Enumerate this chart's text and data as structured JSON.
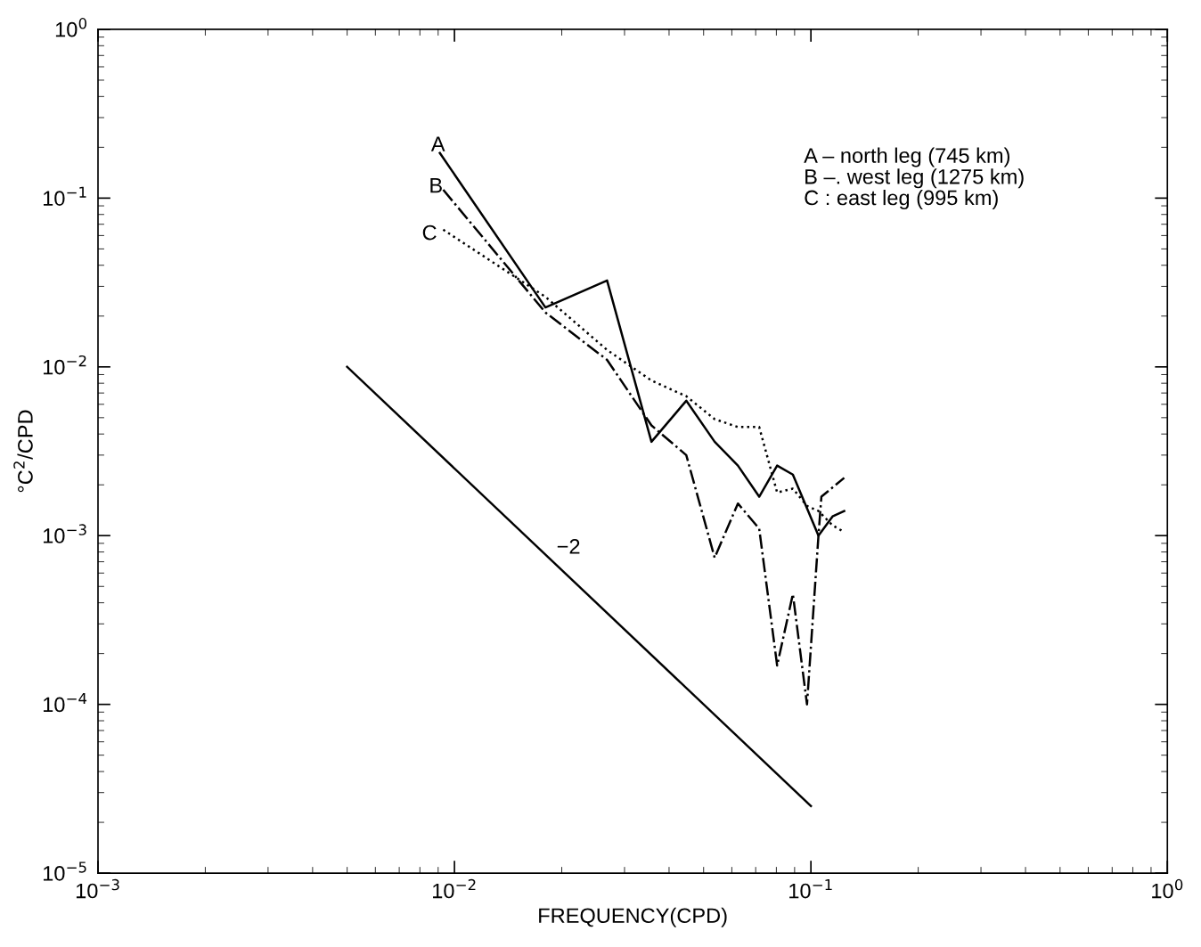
{
  "chart_data": {
    "type": "line",
    "xlabel": "FREQUENCY(CPD)",
    "ylabel": "°C$^{2}$/CPD",
    "log": "xy",
    "grid": false,
    "legend": false,
    "xlim": [
      0.001,
      1
    ],
    "ylim": [
      1e-05,
      1
    ],
    "xticks": [
      {
        "value": 0.001,
        "label": "10$^{−3}$"
      },
      {
        "value": 0.01,
        "label": "10$^{−2}$"
      },
      {
        "value": 0.1,
        "label": "10$^{−1}$"
      },
      {
        "value": 1,
        "label": "10$^{0}$"
      }
    ],
    "yticks": [
      {
        "value": 1e-05,
        "label": "10$^{−5}$"
      },
      {
        "value": 0.0001,
        "label": "10$^{−4}$"
      },
      {
        "value": 0.001,
        "label": "10$^{−3}$"
      },
      {
        "value": 0.01,
        "label": "10$^{−2}$"
      },
      {
        "value": 0.1,
        "label": "10$^{−1}$"
      },
      {
        "value": 1,
        "label": "10$^{0}$"
      }
    ],
    "series": [
      {
        "color": "#000000",
        "line_style": "solid",
        "x": [
          0.0091,
          0.018,
          0.0268,
          0.0357,
          0.0447,
          0.0537,
          0.0624,
          0.0716,
          0.0804,
          0.089,
          0.105,
          0.115,
          0.124
        ],
        "values": [
          0.185,
          0.0225,
          0.0325,
          0.0036,
          0.0063,
          0.0036,
          0.0026,
          0.0017,
          0.0026,
          0.0023,
          0.001,
          0.0013,
          0.0014
        ]
      },
      {
        "color": "#000000",
        "line_style": "dashdot",
        "x": [
          0.0093,
          0.018,
          0.0268,
          0.0357,
          0.0447,
          0.0537,
          0.0624,
          0.0716,
          0.0804,
          0.089,
          0.0975,
          0.105,
          0.107,
          0.124
        ],
        "values": [
          0.112,
          0.021,
          0.011,
          0.0045,
          0.003,
          0.00074,
          0.00155,
          0.0011,
          0.00017,
          0.00045,
          0.0001,
          0.001,
          0.0017,
          0.0022
        ]
      },
      {
        "color": "#000000",
        "line_style": "dotted",
        "x": [
          0.0093,
          0.018,
          0.0268,
          0.0357,
          0.0447,
          0.0537,
          0.0624,
          0.0716,
          0.0804,
          0.089,
          0.0975,
          0.105,
          0.115,
          0.124
        ],
        "values": [
          0.065,
          0.026,
          0.0126,
          0.0083,
          0.0067,
          0.0049,
          0.0044,
          0.0044,
          0.0018,
          0.0019,
          0.0015,
          0.0014,
          0.00115,
          0.00105
        ]
      },
      {
        "type": "line",
        "color": "#000000",
        "line_style": "solid",
        "x": [
          0.005,
          0.1
        ],
        "values": [
          0.01,
          2.5e-05
        ]
      }
    ],
    "annotations": [
      "A",
      "B",
      "C",
      "−2",
      "A – north leg (745 km)\nB –. west leg (1275 km)\nC : east leg (995 km)"
    ]
  }
}
